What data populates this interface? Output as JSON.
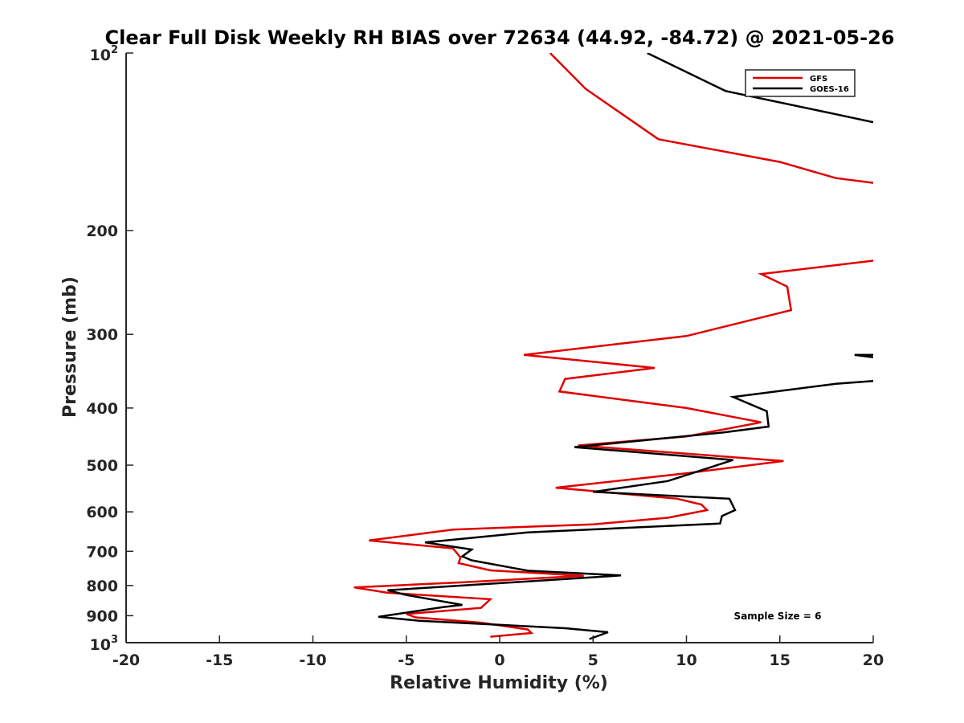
{
  "chart_data": {
    "type": "line",
    "title": "Clear Full Disk Weekly RH BIAS over 72634 (44.92, -84.72) @ 2021-05-26",
    "xlabel": "Relative Humidity (%)",
    "ylabel": "Pressure (mb)",
    "xlim": [
      -20,
      20
    ],
    "ylim": [
      100,
      1000
    ],
    "yscale": "log",
    "ydirection": "reverse",
    "grid": false,
    "x_ticks": [
      -20,
      -15,
      -10,
      -5,
      0,
      5,
      10,
      15,
      20
    ],
    "x_tick_labels": [
      "-20",
      "-15",
      "-10",
      "-5",
      "0",
      "5",
      "10",
      "15",
      "20"
    ],
    "y_ticks_plain": [
      {
        "value": 200,
        "label": "200"
      },
      {
        "value": 300,
        "label": "300"
      },
      {
        "value": 400,
        "label": "400"
      },
      {
        "value": 500,
        "label": "500"
      },
      {
        "value": 600,
        "label": "600"
      },
      {
        "value": 700,
        "label": "700"
      },
      {
        "value": 800,
        "label": "800"
      },
      {
        "value": 900,
        "label": "900"
      }
    ],
    "y_ticks_power": [
      {
        "value": 100,
        "base": "10",
        "exp": "2"
      },
      {
        "value": 1000,
        "base": "10",
        "exp": "3"
      }
    ],
    "legend": {
      "position": "top-right"
    },
    "annotation": "Sample Size = 6",
    "series": [
      {
        "name": "GFS",
        "color": "#e00000",
        "points": [
          [
            2.7,
            100
          ],
          [
            4.6,
            115
          ],
          [
            8.5,
            140
          ],
          [
            15,
            153
          ],
          [
            18,
            163
          ],
          [
            20,
            166
          ],
          [
            null,
            null
          ],
          [
            20,
            225
          ],
          [
            14,
            237
          ],
          [
            15.4,
            249
          ],
          [
            15.6,
            273
          ],
          [
            10,
            302
          ],
          [
            1.3,
            325
          ],
          [
            8.3,
            342
          ],
          [
            3.5,
            357
          ],
          [
            3.2,
            375
          ],
          [
            10,
            400
          ],
          [
            14,
            423
          ],
          [
            10,
            447
          ],
          [
            4.2,
            463
          ],
          [
            15.2,
            492
          ],
          [
            10,
            516
          ],
          [
            3,
            546
          ],
          [
            9.5,
            570
          ],
          [
            10.8,
            583
          ],
          [
            11.1,
            596
          ],
          [
            9.0,
            614
          ],
          [
            5,
            630
          ],
          [
            -2.5,
            643
          ],
          [
            -7,
            671
          ],
          [
            -2.5,
            692
          ],
          [
            -2.1,
            717
          ],
          [
            -2.2,
            733
          ],
          [
            -0.5,
            754
          ],
          [
            4.5,
            770
          ],
          [
            -2,
            790
          ],
          [
            -7.8,
            806
          ],
          [
            -6,
            823
          ],
          [
            -0.5,
            844
          ],
          [
            -1,
            873
          ],
          [
            -5,
            894
          ],
          [
            -4.5,
            906
          ],
          [
            -1,
            925
          ],
          [
            1.5,
            950
          ],
          [
            1.7,
            963
          ],
          [
            -0.5,
            977
          ]
        ]
      },
      {
        "name": "GOES-16",
        "color": "#000000",
        "points": [
          [
            7.9,
            100
          ],
          [
            12.1,
            116
          ],
          [
            18,
            127
          ],
          [
            20,
            131
          ],
          [
            null,
            null
          ],
          [
            20,
            325
          ],
          [
            19,
            325
          ],
          [
            20,
            328
          ],
          [
            null,
            null
          ],
          [
            20,
            360
          ],
          [
            18,
            364
          ],
          [
            12.5,
            383
          ],
          [
            14.3,
            405
          ],
          [
            14.4,
            430
          ],
          [
            12,
            440
          ],
          [
            4,
            466
          ],
          [
            12.5,
            490
          ],
          [
            9,
            532
          ],
          [
            5,
            555
          ],
          [
            12.3,
            570
          ],
          [
            12.6,
            596
          ],
          [
            11.9,
            610
          ],
          [
            11.8,
            628
          ],
          [
            1.5,
            650
          ],
          [
            -4,
            676
          ],
          [
            -1.5,
            695
          ],
          [
            -2.0,
            714
          ],
          [
            -1.5,
            725
          ],
          [
            1.5,
            755
          ],
          [
            6.5,
            769
          ],
          [
            -6,
            815
          ],
          [
            -5,
            830
          ],
          [
            -2,
            863
          ],
          [
            -3,
            870
          ],
          [
            -6.5,
            904
          ],
          [
            -4.3,
            918
          ],
          [
            3.5,
            945
          ],
          [
            5.8,
            960
          ],
          [
            4.8,
            986
          ]
        ]
      }
    ]
  }
}
